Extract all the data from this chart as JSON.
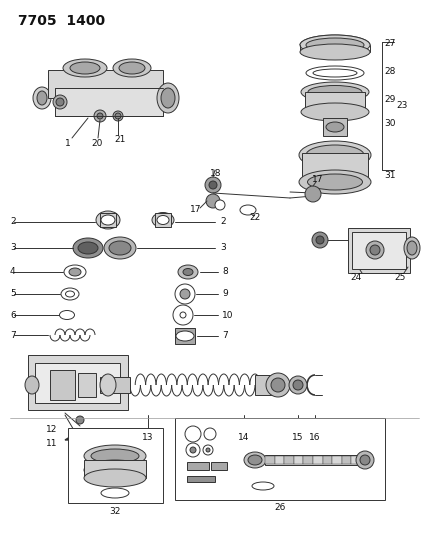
{
  "title": "7705  1400",
  "bg_color": "#ffffff",
  "line_color": "#333333",
  "text_color": "#111111",
  "fig_width": 4.29,
  "fig_height": 5.33,
  "dpi": 100,
  "title_fontsize": 10,
  "label_fontsize": 6.5
}
